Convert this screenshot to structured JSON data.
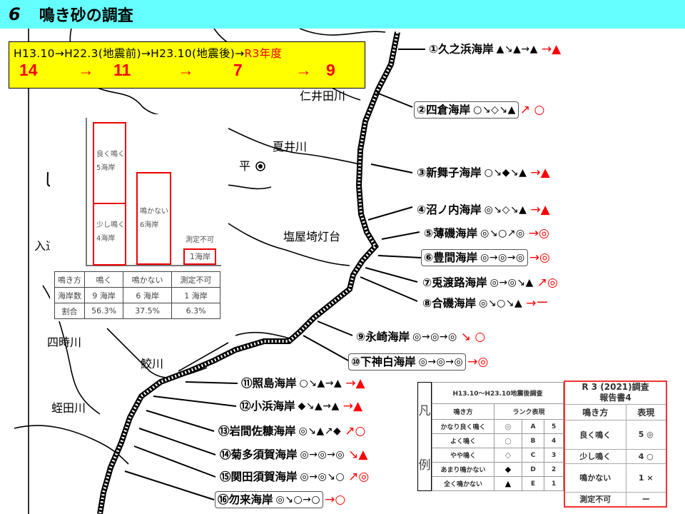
{
  "title": {
    "number": "6",
    "text": "鳴き砂の調査"
  },
  "summary": {
    "periods_black": "H13.10→H22.3(地震前)→H23.10(地震後)→",
    "period_red": "R3年度",
    "counts": [
      "14",
      "→",
      "11",
      "→",
      "7",
      "→",
      "9"
    ]
  },
  "map_places": [
    "仁井田川",
    "夏井川",
    "平",
    "塩屋埼灯台",
    "入道",
    "四時川",
    "鮫川",
    "蛭田川",
    "し"
  ],
  "beaches": [
    {
      "label": "①久之浜海岸",
      "seq": "▲↘▲→▲",
      "red": "→▲",
      "boxed": false
    },
    {
      "label": "②四倉海岸",
      "seq": "○↘◇↘▲",
      "red": "↗ ○",
      "boxed": true
    },
    {
      "label": "③新舞子海岸",
      "seq": "○↘◆↘▲",
      "red": "→▲",
      "boxed": false
    },
    {
      "label": "④沼ノ内海岸",
      "seq": "◎↘◇↘▲",
      "red": "→▲",
      "boxed": false
    },
    {
      "label": "⑤薄磯海岸",
      "seq": "◎↘○↗◎",
      "red": "→◎",
      "boxed": false
    },
    {
      "label": "⑥豊間海岸",
      "seq": "◎→◎→◎",
      "red": "→◎",
      "boxed": true
    },
    {
      "label": "⑦兎渡路海岸",
      "seq": "◎→◎↘▲",
      "red": "↗◎",
      "boxed": false
    },
    {
      "label": "⑧合磯海岸",
      "seq": "◎↘○↘▲",
      "red": "→ー",
      "boxed": false
    },
    {
      "label": "⑨永崎海岸",
      "seq": "◎→◎→◎",
      "red": "↘ ○",
      "boxed": false
    },
    {
      "label": "⑩下神白海岸",
      "seq": "◎→◎→◎",
      "red": "→◎",
      "boxed": true
    },
    {
      "label": "⑪照島海岸",
      "seq": "○↘▲→▲",
      "red": "→▲",
      "boxed": false
    },
    {
      "label": "⑫小浜海岸",
      "seq": "◆↘▲→▲",
      "red": "→▲",
      "boxed": false
    },
    {
      "label": "⑬岩間佐糠海岸",
      "seq": "◎↘▲↗◆",
      "red": "↗○",
      "boxed": false
    },
    {
      "label": "⑭菊多須賀海岸",
      "seq": "◎→◎→◎",
      "red": "↘▲",
      "boxed": false
    },
    {
      "label": "⑮関田須賀海岸",
      "seq": "◎→◎↘○",
      "red": "↗◎",
      "boxed": false
    },
    {
      "label": "⑯勿来海岸",
      "seq": "◎↘○→○",
      "red": "→○",
      "boxed": true
    }
  ],
  "chart": {
    "bars": [
      {
        "label": "良く鳴く",
        "value": "5海岸"
      },
      {
        "label": "少し鳴く",
        "value": "4海岸"
      },
      {
        "label": "鳴かない",
        "value": "6海岸"
      },
      {
        "label": "測定不可",
        "value": "1海岸"
      }
    ],
    "table": {
      "rows": [
        [
          "鳴き方",
          "鳴く",
          "鳴かない",
          "測定不可"
        ],
        [
          "海岸数",
          "9 海岸",
          "6 海岸",
          "1 海岸"
        ],
        [
          "割合",
          "56.3%",
          "37.5%",
          "6.3%"
        ]
      ]
    }
  },
  "legend": {
    "side": [
      "凡",
      "例"
    ],
    "header": "H13.10～H23.10地震後調査",
    "col_headers": [
      "鳴き方",
      "ランク表現"
    ],
    "rows": [
      [
        "かなり良く鳴く",
        "◎",
        "A",
        "5"
      ],
      [
        "よく鳴く",
        "○",
        "B",
        "4"
      ],
      [
        "やや鳴く",
        "◇",
        "C",
        "3"
      ],
      [
        "あまり鳴かない",
        "◆",
        "D",
        "2"
      ],
      [
        "全く鳴かない",
        "▲",
        "E",
        "1"
      ]
    ]
  },
  "r3_legend": {
    "title1": "R 3 (2021)調査",
    "title2": "報告書4",
    "col_headers": [
      "鳴き方",
      "表現"
    ],
    "rows": [
      [
        "良く鳴く",
        "5 ◎"
      ],
      [
        "少し鳴く",
        "4 ○"
      ],
      [
        "鳴かない",
        "1 ×"
      ],
      [
        "測定不可",
        "ー"
      ]
    ]
  },
  "colors": {
    "title_bar": "#66ffff",
    "summary_box": "#ffff00",
    "accent_red": "#ff0000"
  }
}
